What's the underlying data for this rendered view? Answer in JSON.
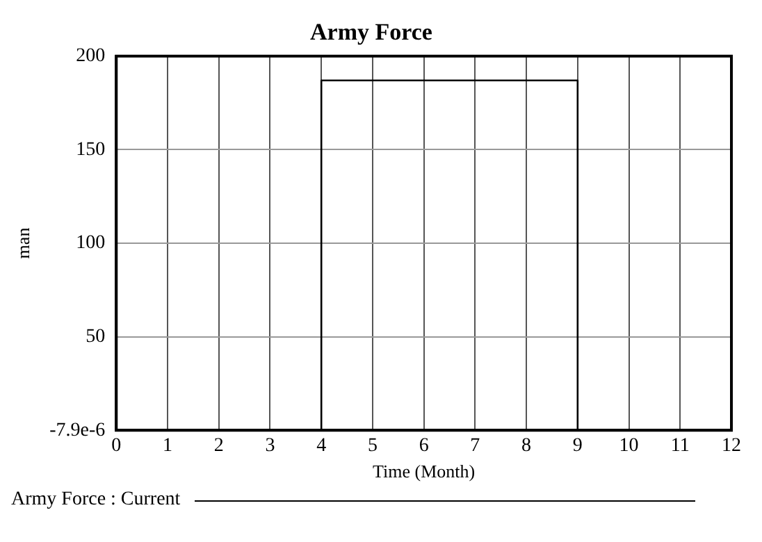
{
  "chart_data": {
    "type": "step",
    "title": "Army Force",
    "xlabel": "Time (Month)",
    "ylabel": "man",
    "x": [
      0,
      4,
      9,
      12
    ],
    "series": [
      {
        "name": "Army Force : Current",
        "color": "#000000",
        "values": [
          0,
          187,
          0,
          0
        ]
      }
    ],
    "xlim": [
      0,
      12
    ],
    "xticks": [
      0,
      1,
      2,
      3,
      4,
      5,
      6,
      7,
      8,
      9,
      10,
      11,
      12
    ],
    "ylim": [
      -7.9e-06,
      200
    ],
    "yticks": [
      {
        "value": -7.9e-06,
        "label": "-7.9e-6"
      },
      50,
      100,
      150,
      200
    ],
    "grid": true,
    "legend": "bottom",
    "marker": "none",
    "line_style": "solid"
  }
}
